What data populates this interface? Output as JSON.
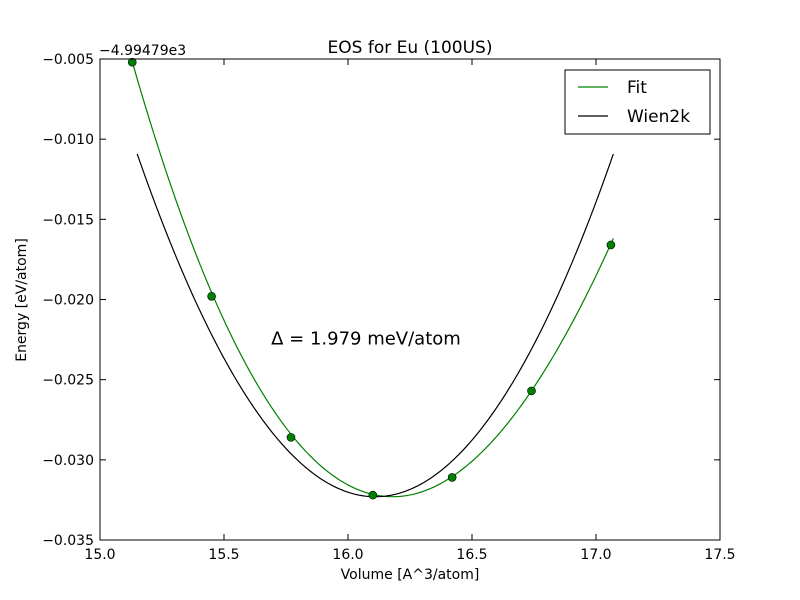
{
  "chart_data": {
    "type": "line",
    "title": "EOS for Eu (100US)",
    "xlabel": "Volume [A^3/atom]",
    "ylabel": "Energy [eV/atom]",
    "offset_label": "−4.99479e3",
    "xlim": [
      15.0,
      17.5
    ],
    "ylim": [
      -0.035,
      -0.005
    ],
    "xticks": [
      15.0,
      15.5,
      16.0,
      16.5,
      17.0,
      17.5
    ],
    "xtick_labels": [
      "15.0",
      "15.5",
      "16.0",
      "16.5",
      "17.0",
      "17.5"
    ],
    "yticks": [
      -0.035,
      -0.03,
      -0.025,
      -0.02,
      -0.015,
      -0.01,
      -0.005
    ],
    "ytick_labels": [
      "−0.035",
      "−0.030",
      "−0.025",
      "−0.020",
      "−0.015",
      "−0.010",
      "−0.005"
    ],
    "grid": false,
    "legend_position": "top-right",
    "annotation": "Δ = 1.979 meV/atom",
    "annotation_position": [
      15.69,
      -0.0228
    ],
    "series": [
      {
        "name": "Fit",
        "color": "#008000",
        "style": "line",
        "fit": {
          "V0": 16.18,
          "E0": -0.0323,
          "a": 0.0223,
          "b": -0.0022
        },
        "x_range": [
          15.13,
          17.07
        ]
      },
      {
        "name": "Wien2k",
        "color": "#000000",
        "style": "line",
        "fit": {
          "V0": 16.11,
          "E0": -0.0323,
          "a": 0.0232,
          "b": 0.0
        },
        "x_range": [
          15.15,
          17.07
        ]
      }
    ],
    "points": {
      "color": "#008000",
      "x": [
        15.13,
        15.45,
        15.77,
        16.1,
        16.42,
        16.74,
        17.06
      ],
      "y": [
        -0.0052,
        -0.0198,
        -0.0286,
        -0.0322,
        -0.0311,
        -0.0257,
        -0.0166
      ]
    }
  }
}
